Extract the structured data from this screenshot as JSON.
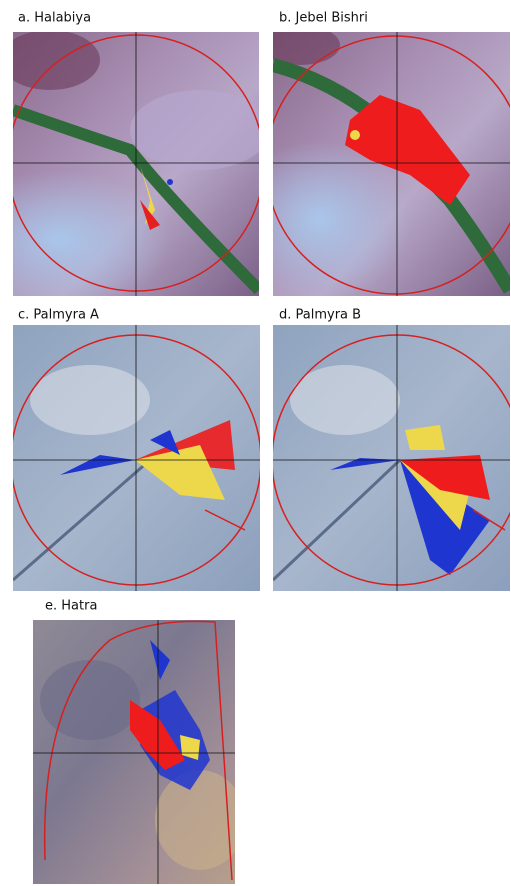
{
  "panels": [
    {
      "label": "a. Halabiya"
    },
    {
      "label": "b. Jebel Bishri"
    },
    {
      "label": "c. Palmyra A"
    },
    {
      "label": "d. Palmyra B"
    },
    {
      "label": "e. Hatra"
    }
  ]
}
